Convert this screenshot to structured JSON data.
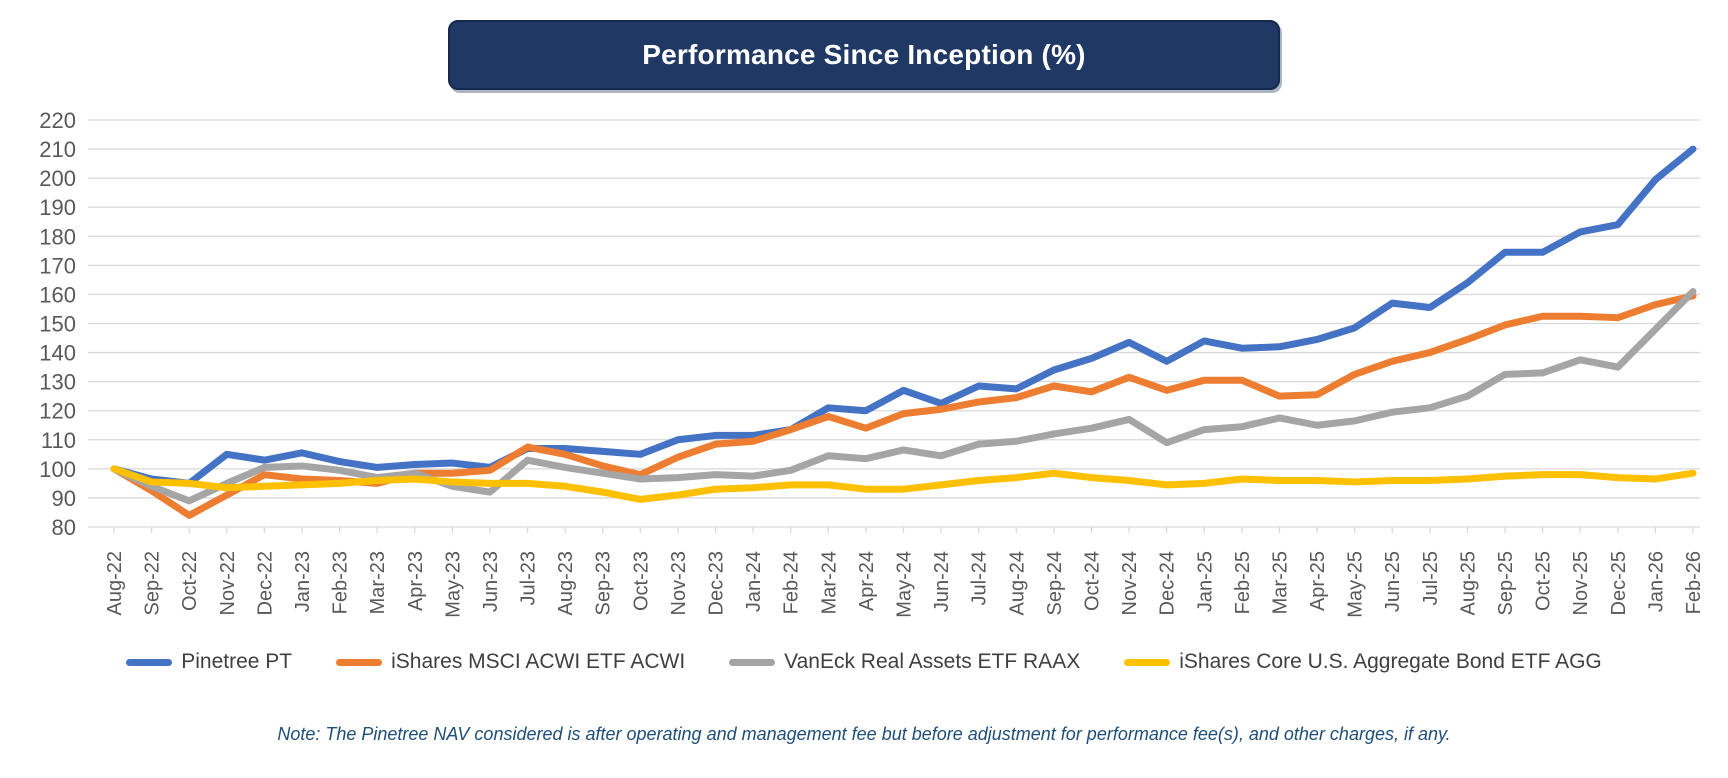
{
  "title": "Performance Since Inception (%)",
  "note": "Note: The Pinetree NAV considered is after operating and management fee but before adjustment for performance fee(s), and other charges, if any.",
  "colors": {
    "title_bg": "#1F3864",
    "title_text": "#FFFFFF",
    "note_text": "#1F4E79",
    "axis_text": "#595959",
    "legend_text": "#404040",
    "gridline": "#D9D9D9"
  },
  "chart_data": {
    "type": "line",
    "title": "Performance Since Inception (%)",
    "xlabel": "",
    "ylabel": "",
    "ylim": [
      80,
      220
    ],
    "ytick_step": 10,
    "grid": true,
    "legend_position": "bottom",
    "categories": [
      "Aug-22",
      "Sep-22",
      "Oct-22",
      "Nov-22",
      "Dec-22",
      "Jan-23",
      "Feb-23",
      "Mar-23",
      "Apr-23",
      "May-23",
      "Jun-23",
      "Jul-23",
      "Aug-23",
      "Sep-23",
      "Oct-23",
      "Nov-23",
      "Dec-23",
      "Jan-24",
      "Feb-24",
      "Mar-24",
      "Apr-24",
      "May-24",
      "Jun-24",
      "Jul-24",
      "Aug-24",
      "Sep-24",
      "Oct-24",
      "Nov-24",
      "Dec-24",
      "Jan-25",
      "Feb-25",
      "Mar-25",
      "Apr-25",
      "May-25",
      "Jun-25",
      "Jul-25",
      "Aug-25",
      "Sep-25",
      "Oct-25",
      "Nov-25",
      "Dec-25",
      "Jan-26",
      "Feb-26"
    ],
    "series": [
      {
        "name": "Pinetree PT",
        "color": "#4472C4",
        "values": [
          100,
          96.5,
          95,
          105,
          103,
          105.5,
          102.5,
          100.5,
          101.5,
          102,
          100.5,
          107,
          107,
          106,
          105,
          110,
          111.5,
          111.5,
          113.5,
          121,
          120,
          127,
          122.5,
          128.5,
          127.5,
          134,
          138,
          143.5,
          137,
          144,
          141.5,
          142,
          144.5,
          148.5,
          157,
          155.5,
          164,
          174.5,
          174.5,
          181.5,
          184,
          199.5,
          210
        ]
      },
      {
        "name": "iShares MSCI ACWI ETF ACWI",
        "color": "#ED7D31",
        "values": [
          100,
          92.5,
          84,
          91,
          98,
          96.5,
          96,
          95,
          98.5,
          98.5,
          99.5,
          107.5,
          105,
          101,
          98,
          104,
          108.5,
          109.5,
          113.5,
          118,
          114,
          119,
          120.5,
          123,
          124.5,
          128.5,
          126.5,
          131.5,
          127,
          130.5,
          130.5,
          125,
          125.5,
          132.5,
          137,
          140,
          144.5,
          149.5,
          152.5,
          152.5,
          152,
          156.5,
          159.5
        ]
      },
      {
        "name": "VanEck Real Assets ETF RAAX",
        "color": "#A5A5A5",
        "values": [
          100,
          94,
          89,
          95,
          100.5,
          101,
          99.5,
          97,
          98.5,
          94,
          92,
          103,
          100.5,
          98.5,
          96.5,
          97,
          98,
          97.5,
          99.5,
          104.5,
          103.5,
          106.5,
          104.5,
          108.5,
          109.5,
          112,
          114,
          117,
          109,
          113.5,
          114.5,
          117.5,
          115,
          116.5,
          119.5,
          121,
          125,
          132.5,
          133,
          137.5,
          135,
          148,
          161
        ]
      },
      {
        "name": "iShares Core U.S. Aggregate Bond ETF AGG",
        "color": "#FFC000",
        "values": [
          100,
          95.5,
          95,
          93.5,
          94,
          94.5,
          95,
          96,
          96.5,
          95.5,
          95,
          95,
          94,
          92,
          89.5,
          91,
          93,
          93.5,
          94.5,
          94.5,
          93,
          93,
          94.5,
          96,
          97,
          98.5,
          97,
          96,
          94.5,
          95,
          96.5,
          96,
          96,
          95.5,
          96,
          96,
          96.5,
          97.5,
          98,
          98,
          97,
          96.5,
          98.5
        ]
      }
    ]
  }
}
